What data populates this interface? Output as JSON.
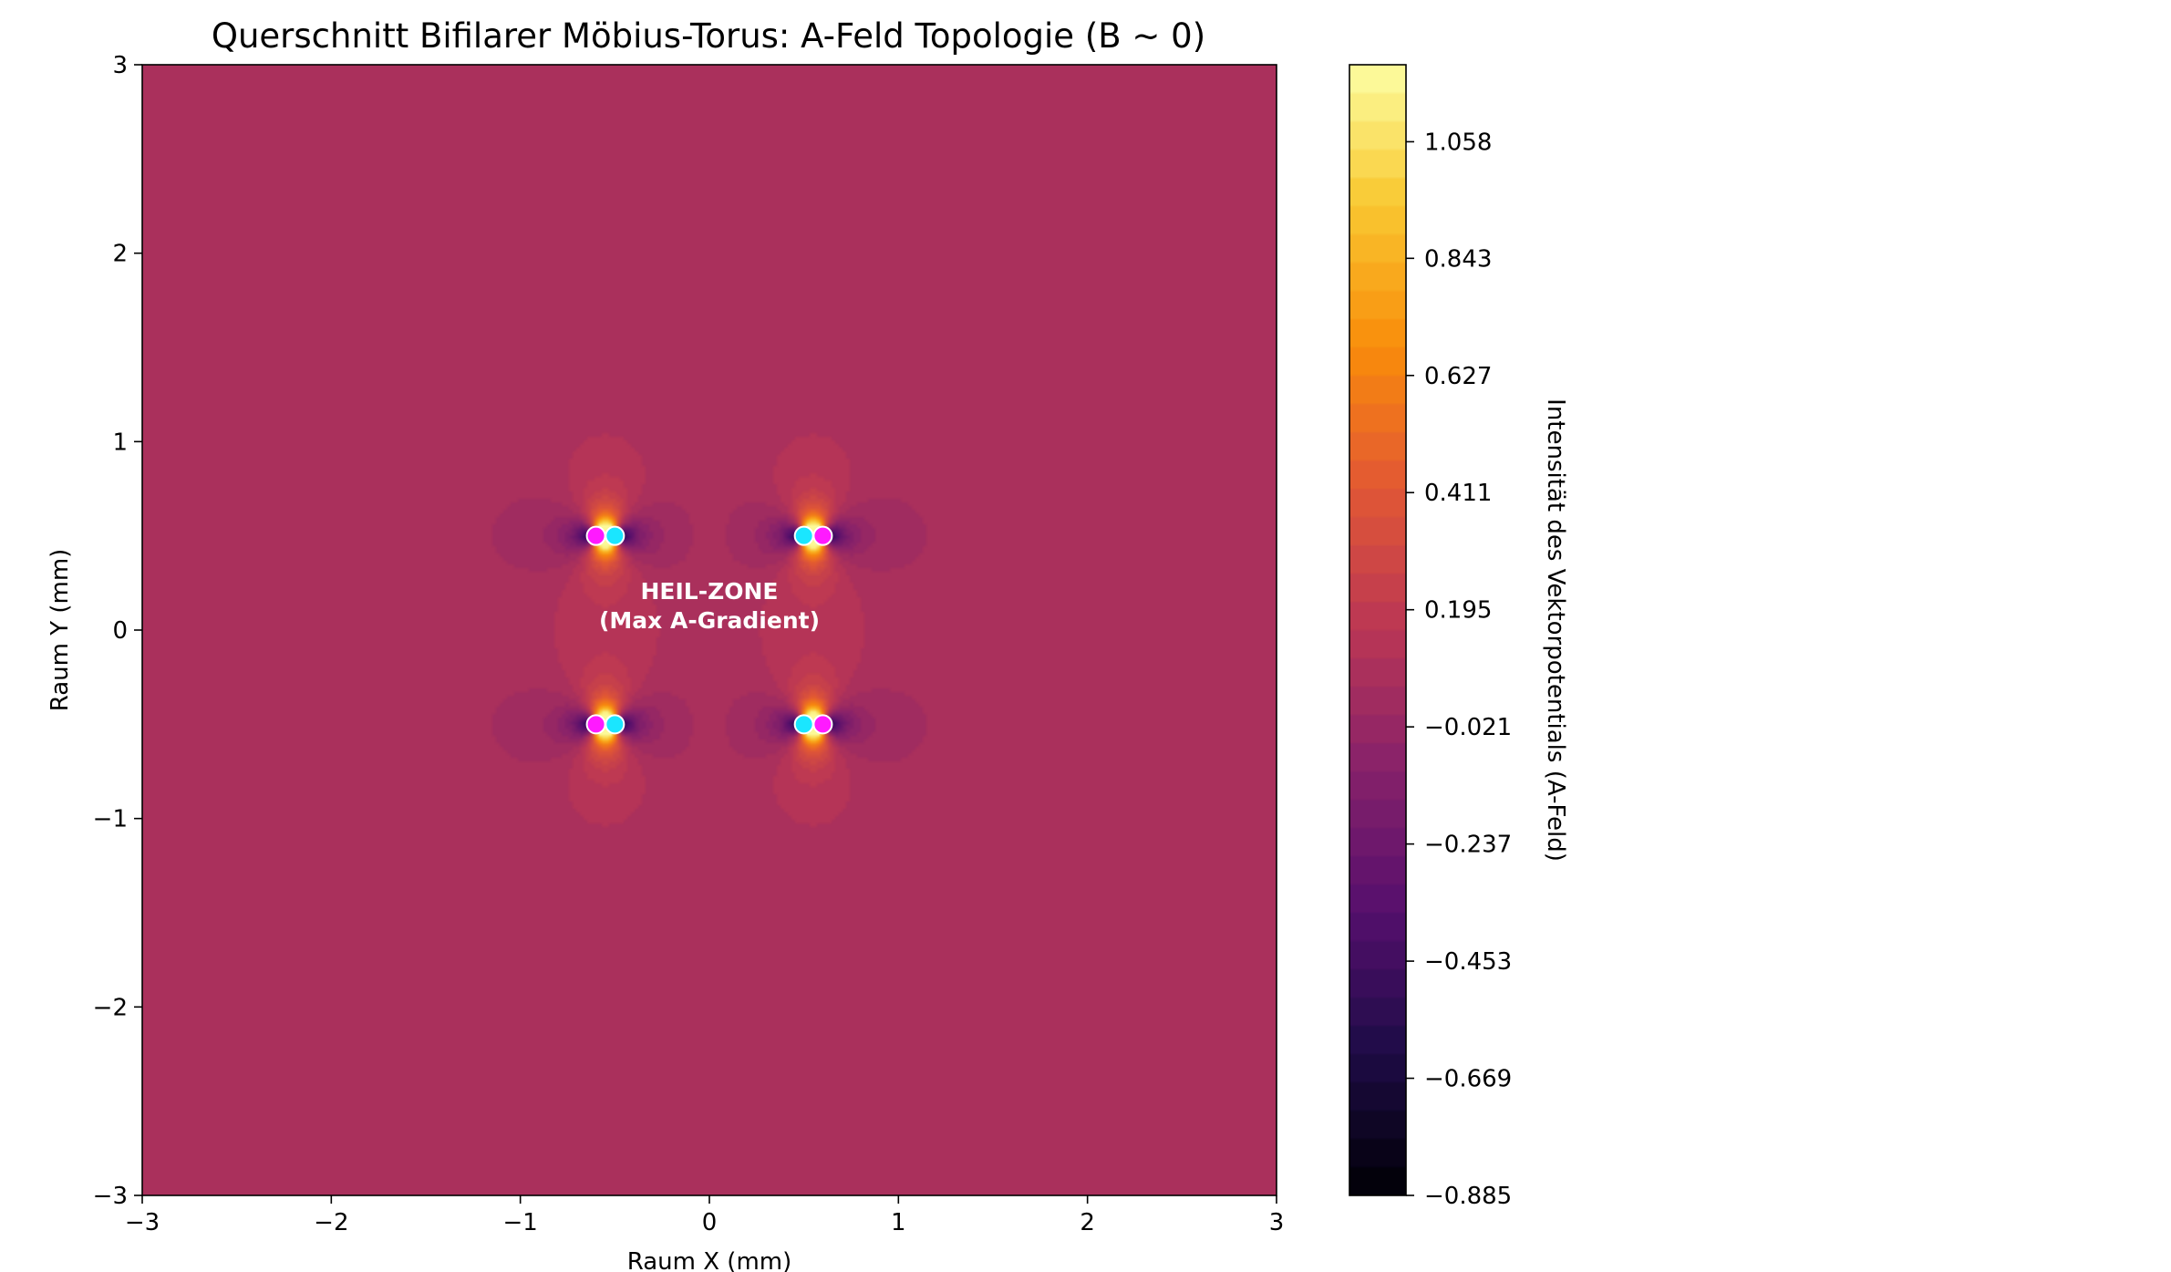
{
  "chart_data": {
    "type": "heatmap",
    "title": "Querschnitt Bifilarer Möbius-Torus: A-Feld Topologie (B ~ 0)",
    "xlabel": "Raum X (mm)",
    "ylabel": "Raum Y (mm)",
    "xlim": [
      -3,
      3
    ],
    "ylim": [
      -3,
      3
    ],
    "x_ticks": [
      -3,
      -2,
      -1,
      0,
      1,
      2,
      3
    ],
    "x_tick_labels": [
      "−3",
      "−2",
      "−1",
      "0",
      "1",
      "2",
      "3"
    ],
    "y_ticks": [
      -3,
      -2,
      -1,
      0,
      1,
      2,
      3
    ],
    "y_tick_labels": [
      "−3",
      "−2",
      "−1",
      "0",
      "1",
      "2",
      "3"
    ],
    "grid": false,
    "colormap": "inferno",
    "colorbar": {
      "label": "Intensität des Vektorpotentials (A-Feld)",
      "range": [
        -0.885,
        1.2
      ],
      "ticks": [
        -0.885,
        -0.669,
        -0.453,
        -0.237,
        -0.021,
        0.195,
        0.411,
        0.627,
        0.843,
        1.058
      ],
      "tick_labels": [
        "−0.885",
        "−0.669",
        "−0.453",
        "−0.237",
        "−0.021",
        "0.195",
        "0.411",
        "0.627",
        "0.843",
        "1.058"
      ]
    },
    "annotation": {
      "line1": "HEIL-ZONE",
      "line2": "(Max A-Gradient)",
      "x": 0,
      "y": 0.1
    },
    "conductors": [
      {
        "x": -0.6,
        "y": 0.5,
        "color": "#ff1aff"
      },
      {
        "x": -0.5,
        "y": 0.5,
        "color": "#1ae6ff"
      },
      {
        "x": 0.5,
        "y": 0.5,
        "color": "#1ae6ff"
      },
      {
        "x": 0.6,
        "y": 0.5,
        "color": "#ff1aff"
      },
      {
        "x": -0.6,
        "y": -0.5,
        "color": "#ff1aff"
      },
      {
        "x": -0.5,
        "y": -0.5,
        "color": "#1ae6ff"
      },
      {
        "x": 0.5,
        "y": -0.5,
        "color": "#1ae6ff"
      },
      {
        "x": 0.6,
        "y": -0.5,
        "color": "#ff1aff"
      }
    ]
  }
}
